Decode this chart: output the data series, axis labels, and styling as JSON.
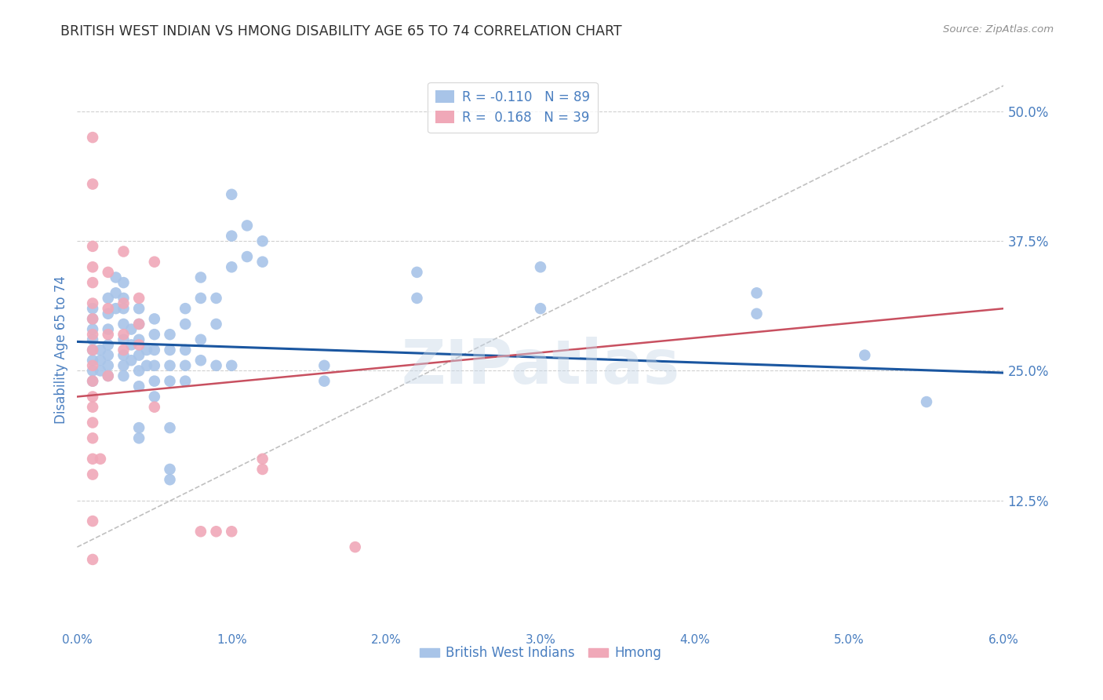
{
  "title": "BRITISH WEST INDIAN VS HMONG DISABILITY AGE 65 TO 74 CORRELATION CHART",
  "source": "Source: ZipAtlas.com",
  "ylabel": "Disability Age 65 to 74",
  "ylabel_ticks": [
    "50.0%",
    "37.5%",
    "25.0%",
    "12.5%"
  ],
  "ylabel_vals": [
    0.5,
    0.375,
    0.25,
    0.125
  ],
  "xmin": 0.0,
  "xmax": 0.06,
  "ymin": 0.0,
  "ymax": 0.54,
  "watermark": "ZIPatlas",
  "bwi_color": "#a8c4e8",
  "hmong_color": "#f0a8b8",
  "bwi_line_color": "#1a56a0",
  "hmong_line_color": "#c85060",
  "diagonal_color": "#c0c0c0",
  "grid_color": "#d0d0d0",
  "title_color": "#303030",
  "axis_label_color": "#4a7fc0",
  "tick_color": "#4a7fc0",
  "bwi_points": [
    [
      0.001,
      0.27
    ],
    [
      0.001,
      0.26
    ],
    [
      0.001,
      0.25
    ],
    [
      0.001,
      0.24
    ],
    [
      0.001,
      0.28
    ],
    [
      0.001,
      0.29
    ],
    [
      0.001,
      0.3
    ],
    [
      0.001,
      0.31
    ],
    [
      0.0015,
      0.27
    ],
    [
      0.0015,
      0.26
    ],
    [
      0.0015,
      0.25
    ],
    [
      0.002,
      0.32
    ],
    [
      0.002,
      0.305
    ],
    [
      0.002,
      0.29
    ],
    [
      0.002,
      0.275
    ],
    [
      0.002,
      0.265
    ],
    [
      0.002,
      0.255
    ],
    [
      0.002,
      0.245
    ],
    [
      0.0025,
      0.34
    ],
    [
      0.0025,
      0.325
    ],
    [
      0.0025,
      0.31
    ],
    [
      0.003,
      0.335
    ],
    [
      0.003,
      0.32
    ],
    [
      0.003,
      0.31
    ],
    [
      0.003,
      0.295
    ],
    [
      0.003,
      0.28
    ],
    [
      0.003,
      0.265
    ],
    [
      0.003,
      0.255
    ],
    [
      0.003,
      0.245
    ],
    [
      0.0035,
      0.29
    ],
    [
      0.0035,
      0.275
    ],
    [
      0.0035,
      0.26
    ],
    [
      0.004,
      0.31
    ],
    [
      0.004,
      0.295
    ],
    [
      0.004,
      0.28
    ],
    [
      0.004,
      0.265
    ],
    [
      0.004,
      0.25
    ],
    [
      0.004,
      0.235
    ],
    [
      0.004,
      0.195
    ],
    [
      0.004,
      0.185
    ],
    [
      0.0045,
      0.27
    ],
    [
      0.0045,
      0.255
    ],
    [
      0.005,
      0.3
    ],
    [
      0.005,
      0.285
    ],
    [
      0.005,
      0.27
    ],
    [
      0.005,
      0.255
    ],
    [
      0.005,
      0.24
    ],
    [
      0.005,
      0.225
    ],
    [
      0.006,
      0.285
    ],
    [
      0.006,
      0.27
    ],
    [
      0.006,
      0.255
    ],
    [
      0.006,
      0.24
    ],
    [
      0.006,
      0.195
    ],
    [
      0.006,
      0.155
    ],
    [
      0.006,
      0.145
    ],
    [
      0.007,
      0.31
    ],
    [
      0.007,
      0.295
    ],
    [
      0.007,
      0.27
    ],
    [
      0.007,
      0.255
    ],
    [
      0.007,
      0.24
    ],
    [
      0.008,
      0.34
    ],
    [
      0.008,
      0.32
    ],
    [
      0.008,
      0.28
    ],
    [
      0.008,
      0.26
    ],
    [
      0.009,
      0.32
    ],
    [
      0.009,
      0.295
    ],
    [
      0.009,
      0.255
    ],
    [
      0.01,
      0.42
    ],
    [
      0.01,
      0.38
    ],
    [
      0.01,
      0.35
    ],
    [
      0.01,
      0.255
    ],
    [
      0.011,
      0.39
    ],
    [
      0.011,
      0.36
    ],
    [
      0.012,
      0.375
    ],
    [
      0.012,
      0.355
    ],
    [
      0.016,
      0.255
    ],
    [
      0.016,
      0.24
    ],
    [
      0.022,
      0.345
    ],
    [
      0.022,
      0.32
    ],
    [
      0.03,
      0.35
    ],
    [
      0.03,
      0.31
    ],
    [
      0.044,
      0.325
    ],
    [
      0.044,
      0.305
    ],
    [
      0.051,
      0.265
    ],
    [
      0.055,
      0.22
    ]
  ],
  "hmong_points": [
    [
      0.001,
      0.475
    ],
    [
      0.001,
      0.43
    ],
    [
      0.001,
      0.37
    ],
    [
      0.001,
      0.35
    ],
    [
      0.001,
      0.335
    ],
    [
      0.001,
      0.315
    ],
    [
      0.001,
      0.3
    ],
    [
      0.001,
      0.285
    ],
    [
      0.001,
      0.27
    ],
    [
      0.001,
      0.255
    ],
    [
      0.001,
      0.24
    ],
    [
      0.001,
      0.225
    ],
    [
      0.001,
      0.215
    ],
    [
      0.001,
      0.2
    ],
    [
      0.001,
      0.185
    ],
    [
      0.001,
      0.165
    ],
    [
      0.001,
      0.15
    ],
    [
      0.001,
      0.105
    ],
    [
      0.001,
      0.068
    ],
    [
      0.0015,
      0.165
    ],
    [
      0.002,
      0.345
    ],
    [
      0.002,
      0.31
    ],
    [
      0.002,
      0.285
    ],
    [
      0.002,
      0.245
    ],
    [
      0.003,
      0.365
    ],
    [
      0.003,
      0.315
    ],
    [
      0.003,
      0.285
    ],
    [
      0.003,
      0.27
    ],
    [
      0.004,
      0.32
    ],
    [
      0.004,
      0.295
    ],
    [
      0.004,
      0.275
    ],
    [
      0.005,
      0.355
    ],
    [
      0.005,
      0.215
    ],
    [
      0.008,
      0.095
    ],
    [
      0.009,
      0.095
    ],
    [
      0.01,
      0.095
    ],
    [
      0.012,
      0.165
    ],
    [
      0.012,
      0.155
    ],
    [
      0.018,
      0.08
    ]
  ]
}
